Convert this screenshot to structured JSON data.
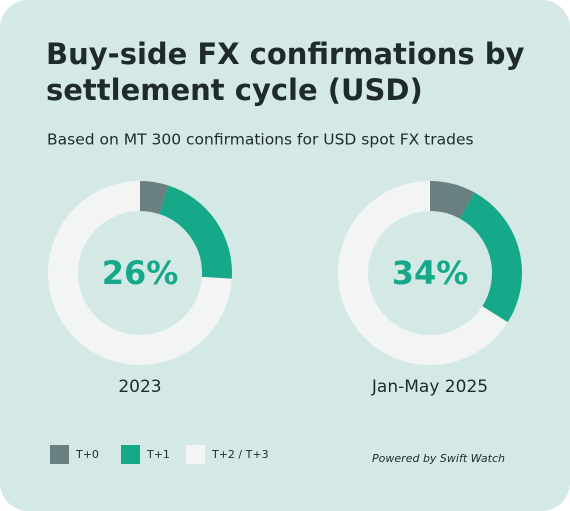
{
  "title_lines": [
    "Buy-side FX confirmations by",
    "settlement cycle (USD)"
  ],
  "subtitle": "Based on MT 300 confirmations for USD spot FX trades",
  "footer": "Powered by Swift Watch",
  "chart_data": [
    {
      "type": "donut",
      "label": "2023",
      "center_label": "26%",
      "categories": [
        "T+0",
        "T+1",
        "T+2 / T+3"
      ],
      "values": [
        5,
        21,
        74
      ],
      "colors": [
        "#6a7f80",
        "#15a98a",
        "#f3f5f5"
      ]
    },
    {
      "type": "donut",
      "label": "Jan-May 2025",
      "center_label": "34%",
      "categories": [
        "T+0",
        "T+1",
        "T+2 / T+3"
      ],
      "values": [
        8,
        26,
        66
      ],
      "colors": [
        "#6a7f80",
        "#15a98a",
        "#f3f5f5"
      ]
    }
  ]
}
